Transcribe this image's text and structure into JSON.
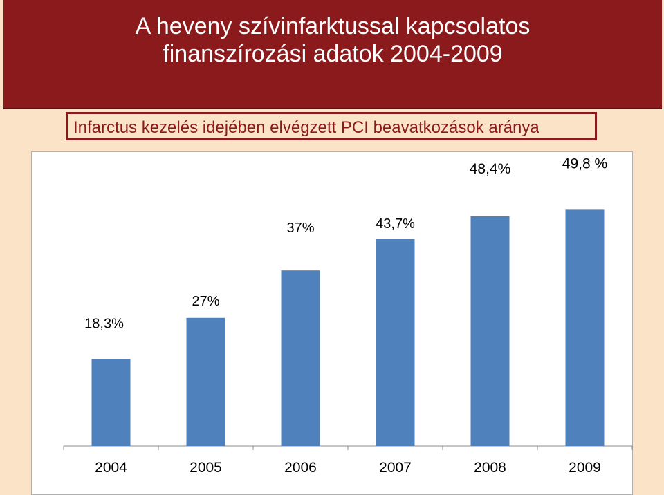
{
  "title": "A heveny szívinfarktussal kapcsolatos finanszírozási adatok 2004-2009",
  "title_line1": "A heveny szívinfarktussal kapcsolatos",
  "title_line2": "finanszírozási adatok 2004-2009",
  "subtitle": "Infarctus kezelés idejében elvégzett PCI beavatkozások aránya",
  "colors": {
    "title_band": "#8b1a1c",
    "background": "#fbe3c8",
    "bar": "#4f81bd"
  },
  "chart_data": {
    "type": "bar",
    "categories": [
      "2004",
      "2005",
      "2006",
      "2007",
      "2008",
      "2009"
    ],
    "values": [
      18.3,
      27,
      37,
      43.7,
      48.4,
      49.8
    ],
    "data_labels": [
      "18,3%",
      "27%",
      "37%",
      "43,7%",
      "48,4%",
      "49,8 %"
    ],
    "title": "Infarctus kezelés idejében elvégzett PCI beavatkozások aránya",
    "xlabel": "",
    "ylabel": "",
    "ylim": [
      0,
      55
    ],
    "grid": false,
    "legend": "none"
  }
}
